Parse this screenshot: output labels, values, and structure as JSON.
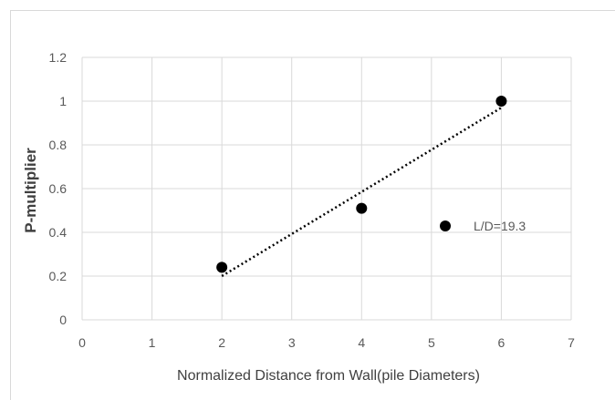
{
  "chart_data": {
    "type": "scatter",
    "title": "",
    "xlabel": "Normalized Distance from Wall(pile Diameters)",
    "ylabel": "P-multiplier",
    "xlim": [
      0,
      7
    ],
    "ylim": [
      0,
      1.2
    ],
    "xticks": [
      "0",
      "1",
      "2",
      "3",
      "4",
      "5",
      "6",
      "7"
    ],
    "yticks": [
      "0",
      "0.2",
      "0.4",
      "0.6",
      "0.8",
      "1",
      "1.2"
    ],
    "grid": true,
    "series": [
      {
        "name": "L/D=19.3",
        "x": [
          2,
          4,
          6
        ],
        "y": [
          0.24,
          0.51,
          1.0
        ],
        "color": "#000000"
      }
    ],
    "trendline": {
      "style": "dotted",
      "type": "linear",
      "x": [
        2,
        6
      ],
      "y": [
        0.2,
        0.97
      ],
      "color": "#000000"
    },
    "legend": {
      "placement": "right-inside",
      "label": "L/D=19.3"
    }
  }
}
